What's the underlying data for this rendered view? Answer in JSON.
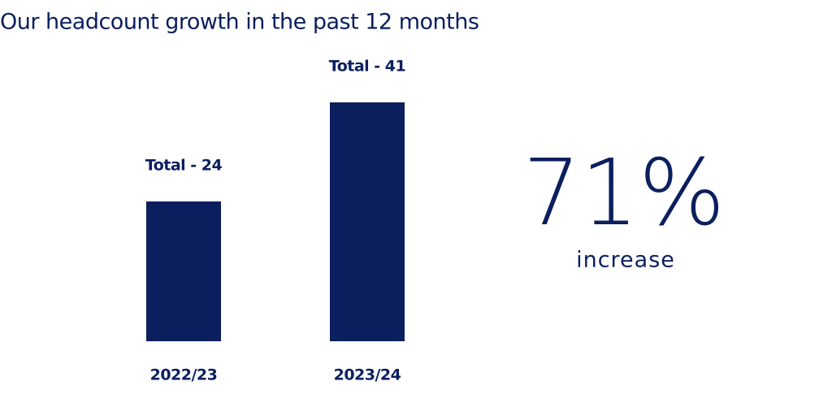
{
  "chart_data": {
    "type": "bar",
    "title": "Our headcount growth in the past 12 months",
    "categories": [
      "2022/23",
      "2023/24"
    ],
    "values": [
      24,
      41
    ],
    "value_labels": [
      "Total - 24",
      "Total - 41"
    ],
    "color": "#0b1f5e",
    "annotations": [
      "71%",
      "increase"
    ]
  }
}
